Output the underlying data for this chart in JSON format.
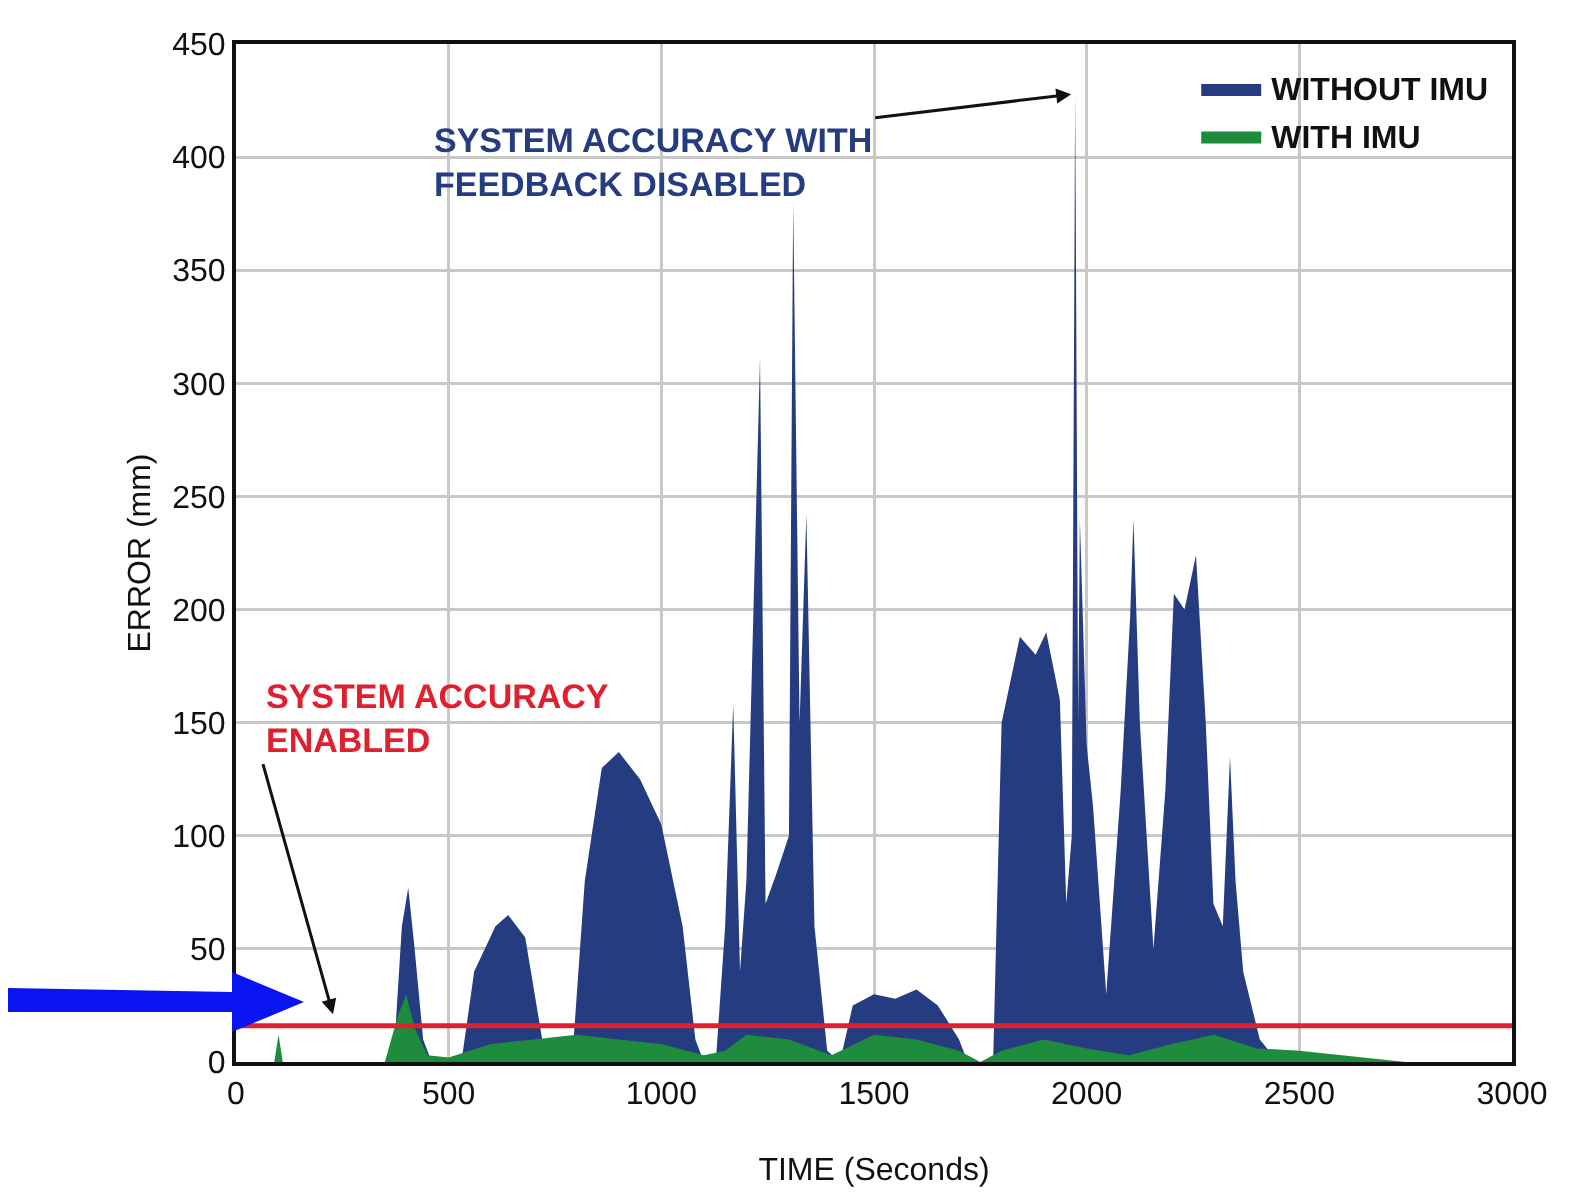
{
  "chart_data": {
    "type": "area",
    "xlabel": "TIME (Seconds)",
    "ylabel": "ERROR (mm)",
    "xlim": [
      0,
      3000
    ],
    "xticks": [
      0,
      500,
      1000,
      1500,
      2000,
      2500,
      3000
    ],
    "ylim": [
      0,
      450
    ],
    "yticks": [
      0,
      50,
      100,
      150,
      200,
      250,
      300,
      350,
      400,
      450
    ],
    "grid": true,
    "legend": "top right",
    "series": [
      {
        "name": "WITHOUT IMU",
        "color": "#263c80",
        "x": [
          0,
          350,
          370,
          390,
          405,
          420,
          440,
          460,
          530,
          560,
          610,
          640,
          680,
          720,
          740,
          790,
          820,
          860,
          900,
          950,
          1000,
          1050,
          1080,
          1100,
          1128,
          1150,
          1169,
          1185,
          1200,
          1232,
          1245,
          1270,
          1300,
          1310,
          1325,
          1341,
          1360,
          1390,
          1420,
          1450,
          1500,
          1550,
          1600,
          1650,
          1700,
          1720,
          1780,
          1800,
          1843,
          1880,
          1905,
          1937,
          1952,
          1965,
          1973,
          1980,
          1984,
          2000,
          2015,
          2046,
          2080,
          2102,
          2110,
          2125,
          2157,
          2185,
          2205,
          2230,
          2257,
          2280,
          2298,
          2320,
          2337,
          2350,
          2368,
          2407,
          2450,
          3000
        ],
        "values": [
          0,
          0,
          0,
          60,
          77,
          50,
          10,
          0,
          0,
          40,
          60,
          65,
          55,
          10,
          0,
          0,
          80,
          130,
          137,
          125,
          105,
          60,
          10,
          0,
          0,
          60,
          158,
          40,
          80,
          311,
          70,
          83,
          100,
          380,
          150,
          242,
          60,
          5,
          0,
          25,
          30,
          28,
          32,
          25,
          10,
          0,
          0,
          150,
          188,
          180,
          190,
          160,
          70,
          100,
          428,
          150,
          240,
          140,
          113,
          30,
          120,
          196,
          240,
          150,
          50,
          120,
          207,
          200,
          224,
          150,
          70,
          60,
          135,
          80,
          40,
          10,
          0,
          0
        ]
      },
      {
        "name": "WITH IMU",
        "color": "#1e8c3c",
        "x": [
          0,
          90,
          100,
          110,
          350,
          380,
          400,
          420,
          450,
          500,
          600,
          700,
          800,
          900,
          1000,
          1100,
          1150,
          1200,
          1300,
          1400,
          1500,
          1600,
          1700,
          1750,
          1800,
          1900,
          2000,
          2100,
          2200,
          2300,
          2400,
          2500,
          2600,
          2700,
          2750,
          3000
        ],
        "values": [
          0,
          0,
          12,
          0,
          0,
          20,
          30,
          15,
          3,
          2,
          8,
          10,
          12,
          10,
          8,
          3,
          5,
          12,
          10,
          3,
          12,
          10,
          5,
          0,
          5,
          10,
          6,
          3,
          8,
          12,
          6,
          5,
          3,
          1,
          0,
          0
        ]
      }
    ],
    "ref_lines": [
      {
        "axis": "y",
        "value": 16,
        "color": "#e0202e"
      }
    ],
    "annotations": [
      {
        "text": "SYSTEM ACCURACY WITH\nFEEDBACK DISABLED",
        "x": 1973,
        "y": 428
      },
      "SYSTEM ACCURACY\nENABLED"
    ]
  }
}
